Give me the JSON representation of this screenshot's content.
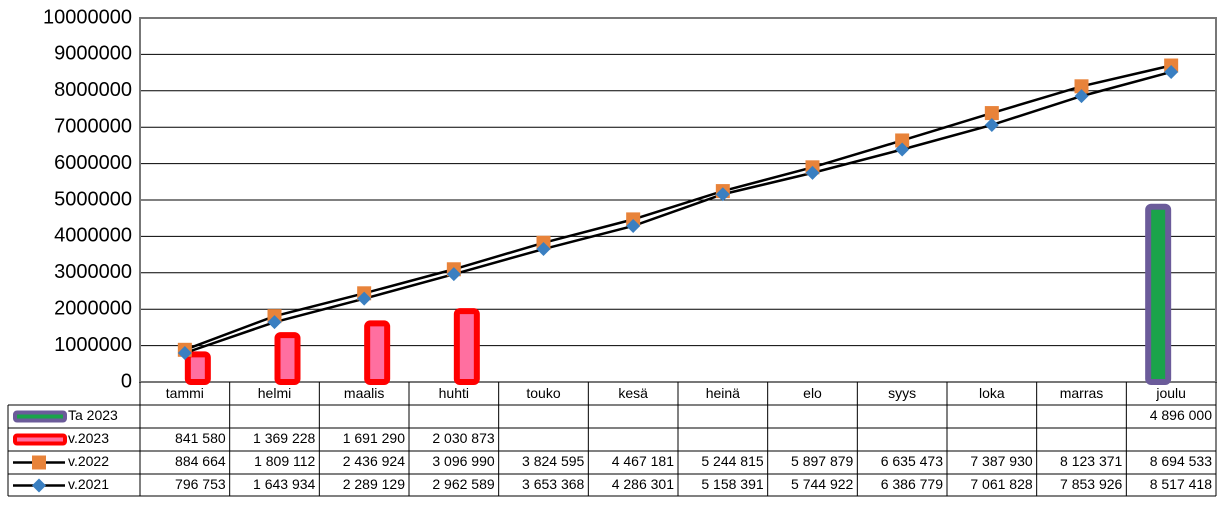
{
  "chart_data": {
    "type": "bar-line",
    "categories": [
      "tammi",
      "helmi",
      "maalis",
      "huhti",
      "touko",
      "kesä",
      "heinä",
      "elo",
      "syys",
      "loka",
      "marras",
      "joulu"
    ],
    "ylim": [
      0,
      10000000
    ],
    "yticks": [
      0,
      1000000,
      2000000,
      3000000,
      4000000,
      5000000,
      6000000,
      7000000,
      8000000,
      9000000,
      10000000
    ],
    "grid": true,
    "series": [
      {
        "name": "Ta 2023",
        "type": "bar",
        "color": "#1aa34a",
        "border_color": "#6b5b9a",
        "values": [
          null,
          null,
          null,
          null,
          null,
          null,
          null,
          null,
          null,
          null,
          null,
          4896000
        ],
        "value_labels": [
          null,
          null,
          null,
          null,
          null,
          null,
          null,
          null,
          null,
          null,
          null,
          "4 896 000"
        ]
      },
      {
        "name": "v.2023",
        "type": "bar",
        "color": "#ff6fa0",
        "border_color": "#ff0000",
        "values": [
          841580,
          1369228,
          1691290,
          2030873,
          null,
          null,
          null,
          null,
          null,
          null,
          null,
          null
        ],
        "value_labels": [
          "841 580",
          "1 369 228",
          "1 691 290",
          "2 030 873",
          null,
          null,
          null,
          null,
          null,
          null,
          null,
          null
        ]
      },
      {
        "name": "v.2022",
        "type": "line",
        "marker": "square",
        "color": "#e8833a",
        "line_color": "#000000",
        "values": [
          884664,
          1809112,
          2436924,
          3096990,
          3824595,
          4467181,
          5244815,
          5897879,
          6635473,
          7387930,
          8123371,
          8694533
        ],
        "value_labels": [
          "884 664",
          "1 809 112",
          "2 436 924",
          "3 096 990",
          "3 824 595",
          "4 467 181",
          "5 244 815",
          "5 897 879",
          "6 635 473",
          "7 387 930",
          "8 123 371",
          "8 694 533"
        ]
      },
      {
        "name": "v.2021",
        "type": "line",
        "marker": "diamond",
        "color": "#3a7fc1",
        "line_color": "#000000",
        "values": [
          796753,
          1643934,
          2289129,
          2962589,
          3653368,
          4286301,
          5158391,
          5744922,
          6386779,
          7061828,
          7853926,
          8517418
        ],
        "value_labels": [
          "796 753",
          "1 643 934",
          "2 289 129",
          "2 962 589",
          "3 653 368",
          "4 286 301",
          "5 158 391",
          "5 744 922",
          "6 386 779",
          "7 061 828",
          "7 853 926",
          "8 517 418"
        ]
      }
    ]
  }
}
